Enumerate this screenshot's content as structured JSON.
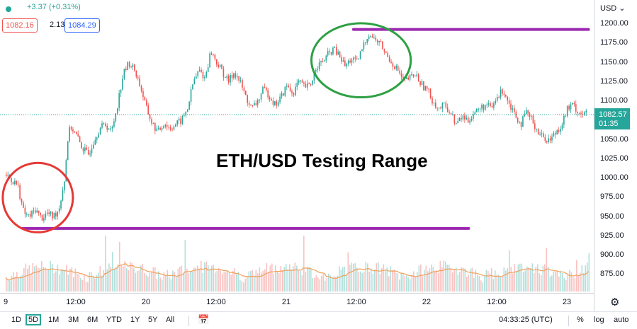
{
  "header": {
    "change": "+3.37 (+0.31%)",
    "bid": "1082.16",
    "spread": "2.13",
    "ask": "1084.29"
  },
  "price_axis": {
    "currency": "USD",
    "ticks": [
      "1200.00",
      "1175.00",
      "1150.00",
      "1125.00",
      "1100.00",
      "1075.00",
      "1050.00",
      "1025.00",
      "1000.00",
      "975.00",
      "950.00",
      "925.00",
      "900.00",
      "875.00"
    ],
    "last_price": "1082.57",
    "countdown": "01:35"
  },
  "time_axis": [
    "9",
    "12:00",
    "20",
    "12:00",
    "21",
    "12:00",
    "22",
    "12:00",
    "23"
  ],
  "annotation": "ETH/USD Testing Range",
  "toolbar": {
    "ranges": [
      "1D",
      "5D",
      "1M",
      "3M",
      "6M",
      "YTD",
      "1Y",
      "5Y",
      "All"
    ],
    "active_range": "5D",
    "clock": "04:33:25 (UTC)",
    "percent": "%",
    "log": "log",
    "auto": "auto"
  },
  "colors": {
    "up": "#26a69a",
    "down": "#ef5350",
    "range_line": "#9c27b0",
    "circle_low": "#e53935",
    "circle_high": "#2ea043",
    "volume_ma": "#f0a05a"
  },
  "chart_data": {
    "type": "candlestick",
    "ylim": [
      855,
      1207
    ],
    "x_range": [
      0,
      100
    ],
    "x_ticks": [
      0,
      12.0,
      24.0,
      36.0,
      48.0,
      60.0,
      72.0,
      84.0,
      96.0
    ],
    "price_path": [
      [
        0,
        1005
      ],
      [
        2,
        990
      ],
      [
        3,
        955
      ],
      [
        4,
        950
      ],
      [
        5,
        960
      ],
      [
        6,
        948
      ],
      [
        7,
        955
      ],
      [
        8,
        950
      ],
      [
        9,
        960
      ],
      [
        10,
        1000
      ],
      [
        10.5,
        1050
      ],
      [
        11,
        1068
      ],
      [
        12,
        1055
      ],
      [
        13,
        1040
      ],
      [
        14,
        1030
      ],
      [
        15,
        1050
      ],
      [
        16,
        1065
      ],
      [
        17,
        1070
      ],
      [
        18,
        1060
      ],
      [
        19,
        1095
      ],
      [
        20,
        1135
      ],
      [
        21,
        1150
      ],
      [
        22,
        1140
      ],
      [
        23,
        1118
      ],
      [
        24,
        1090
      ],
      [
        25,
        1070
      ],
      [
        26,
        1060
      ],
      [
        27,
        1072
      ],
      [
        28,
        1065
      ],
      [
        29,
        1070
      ],
      [
        30,
        1075
      ],
      [
        31,
        1090
      ],
      [
        32,
        1125
      ],
      [
        33,
        1140
      ],
      [
        34,
        1130
      ],
      [
        35,
        1165
      ],
      [
        36,
        1150
      ],
      [
        37,
        1138
      ],
      [
        38,
        1125
      ],
      [
        39,
        1138
      ],
      [
        40,
        1125
      ],
      [
        41,
        1105
      ],
      [
        42,
        1090
      ],
      [
        43,
        1100
      ],
      [
        44,
        1115
      ],
      [
        45,
        1108
      ],
      [
        46,
        1095
      ],
      [
        47,
        1105
      ],
      [
        48,
        1120
      ],
      [
        49,
        1110
      ],
      [
        50,
        1125
      ],
      [
        51,
        1118
      ],
      [
        52,
        1120
      ],
      [
        53,
        1145
      ],
      [
        54,
        1150
      ],
      [
        55,
        1160
      ],
      [
        56,
        1168
      ],
      [
        57,
        1158
      ],
      [
        58,
        1145
      ],
      [
        59,
        1155
      ],
      [
        60,
        1150
      ],
      [
        61,
        1170
      ],
      [
        62,
        1188
      ],
      [
        63,
        1180
      ],
      [
        64,
        1175
      ],
      [
        65,
        1160
      ],
      [
        66,
        1150
      ],
      [
        67,
        1140
      ],
      [
        68,
        1125
      ],
      [
        69,
        1130
      ],
      [
        70,
        1135
      ],
      [
        71,
        1122
      ],
      [
        72,
        1115
      ],
      [
        73,
        1100
      ],
      [
        74,
        1090
      ],
      [
        75,
        1095
      ],
      [
        76,
        1085
      ],
      [
        77,
        1070
      ],
      [
        78,
        1080
      ],
      [
        79,
        1075
      ],
      [
        80,
        1085
      ],
      [
        81,
        1090
      ],
      [
        82,
        1095
      ],
      [
        83,
        1090
      ],
      [
        84,
        1105
      ],
      [
        85,
        1115
      ],
      [
        86,
        1098
      ],
      [
        87,
        1085
      ],
      [
        88,
        1070
      ],
      [
        89,
        1085
      ],
      [
        90,
        1075
      ],
      [
        91,
        1060
      ],
      [
        92,
        1052
      ],
      [
        93,
        1050
      ],
      [
        94,
        1060
      ],
      [
        95,
        1070
      ],
      [
        96,
        1090
      ],
      [
        97,
        1095
      ],
      [
        98,
        1085
      ],
      [
        99.5,
        1083
      ]
    ],
    "range_lines": [
      {
        "y": 1193,
        "x_start": 59.5,
        "x_end": 99.7
      },
      {
        "y": 935,
        "x_start": 2.9,
        "x_end": 79.2
      }
    ],
    "highlight_circles": [
      {
        "x": 5.5,
        "y": 975,
        "rx": 6.0,
        "ry": 45
      },
      {
        "x": 60.8,
        "y": 1153,
        "rx": 8.5,
        "ry": 48
      }
    ]
  }
}
